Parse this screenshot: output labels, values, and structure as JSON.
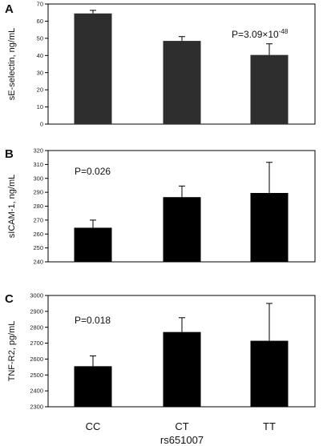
{
  "chart_data": [
    {
      "type": "bar",
      "panel": "A",
      "ylabel": "sE-selectin, ng/mL",
      "categories": [
        "CC",
        "CT",
        "TT"
      ],
      "values": [
        64.5,
        48.5,
        40.3
      ],
      "errors": [
        1.8,
        2.5,
        6.5
      ],
      "ylim": [
        0,
        70
      ],
      "yticks": [
        0,
        10,
        20,
        30,
        40,
        50,
        60,
        70
      ],
      "annotation": {
        "base": "P=3.09×10",
        "exponent": "-48"
      },
      "bar_color": "#2e2e2e"
    },
    {
      "type": "bar",
      "panel": "B",
      "ylabel": "sICAM-1, ng/mL",
      "categories": [
        "CC",
        "CT",
        "TT"
      ],
      "values": [
        264.5,
        286.5,
        289.5
      ],
      "errors": [
        5.5,
        8.0,
        22.0
      ],
      "ylim": [
        240,
        320
      ],
      "yticks": [
        240,
        250,
        260,
        270,
        280,
        290,
        300,
        310,
        320
      ],
      "annotation": {
        "base": "P=0.026",
        "exponent": ""
      },
      "bar_color": "#000000"
    },
    {
      "type": "bar",
      "panel": "C",
      "ylabel": "TNF-R2, pg/mL",
      "categories": [
        "CC",
        "CT",
        "TT"
      ],
      "values": [
        2555,
        2770,
        2715
      ],
      "errors": [
        65,
        90,
        235
      ],
      "ylim": [
        2300,
        3000
      ],
      "yticks": [
        2300,
        2400,
        2500,
        2600,
        2700,
        2800,
        2900,
        3000
      ],
      "annotation": {
        "base": "P=0.018",
        "exponent": ""
      },
      "bar_color": "#000000"
    }
  ],
  "xaxis": {
    "categories": [
      "CC",
      "CT",
      "TT"
    ],
    "label": "rs651007"
  }
}
